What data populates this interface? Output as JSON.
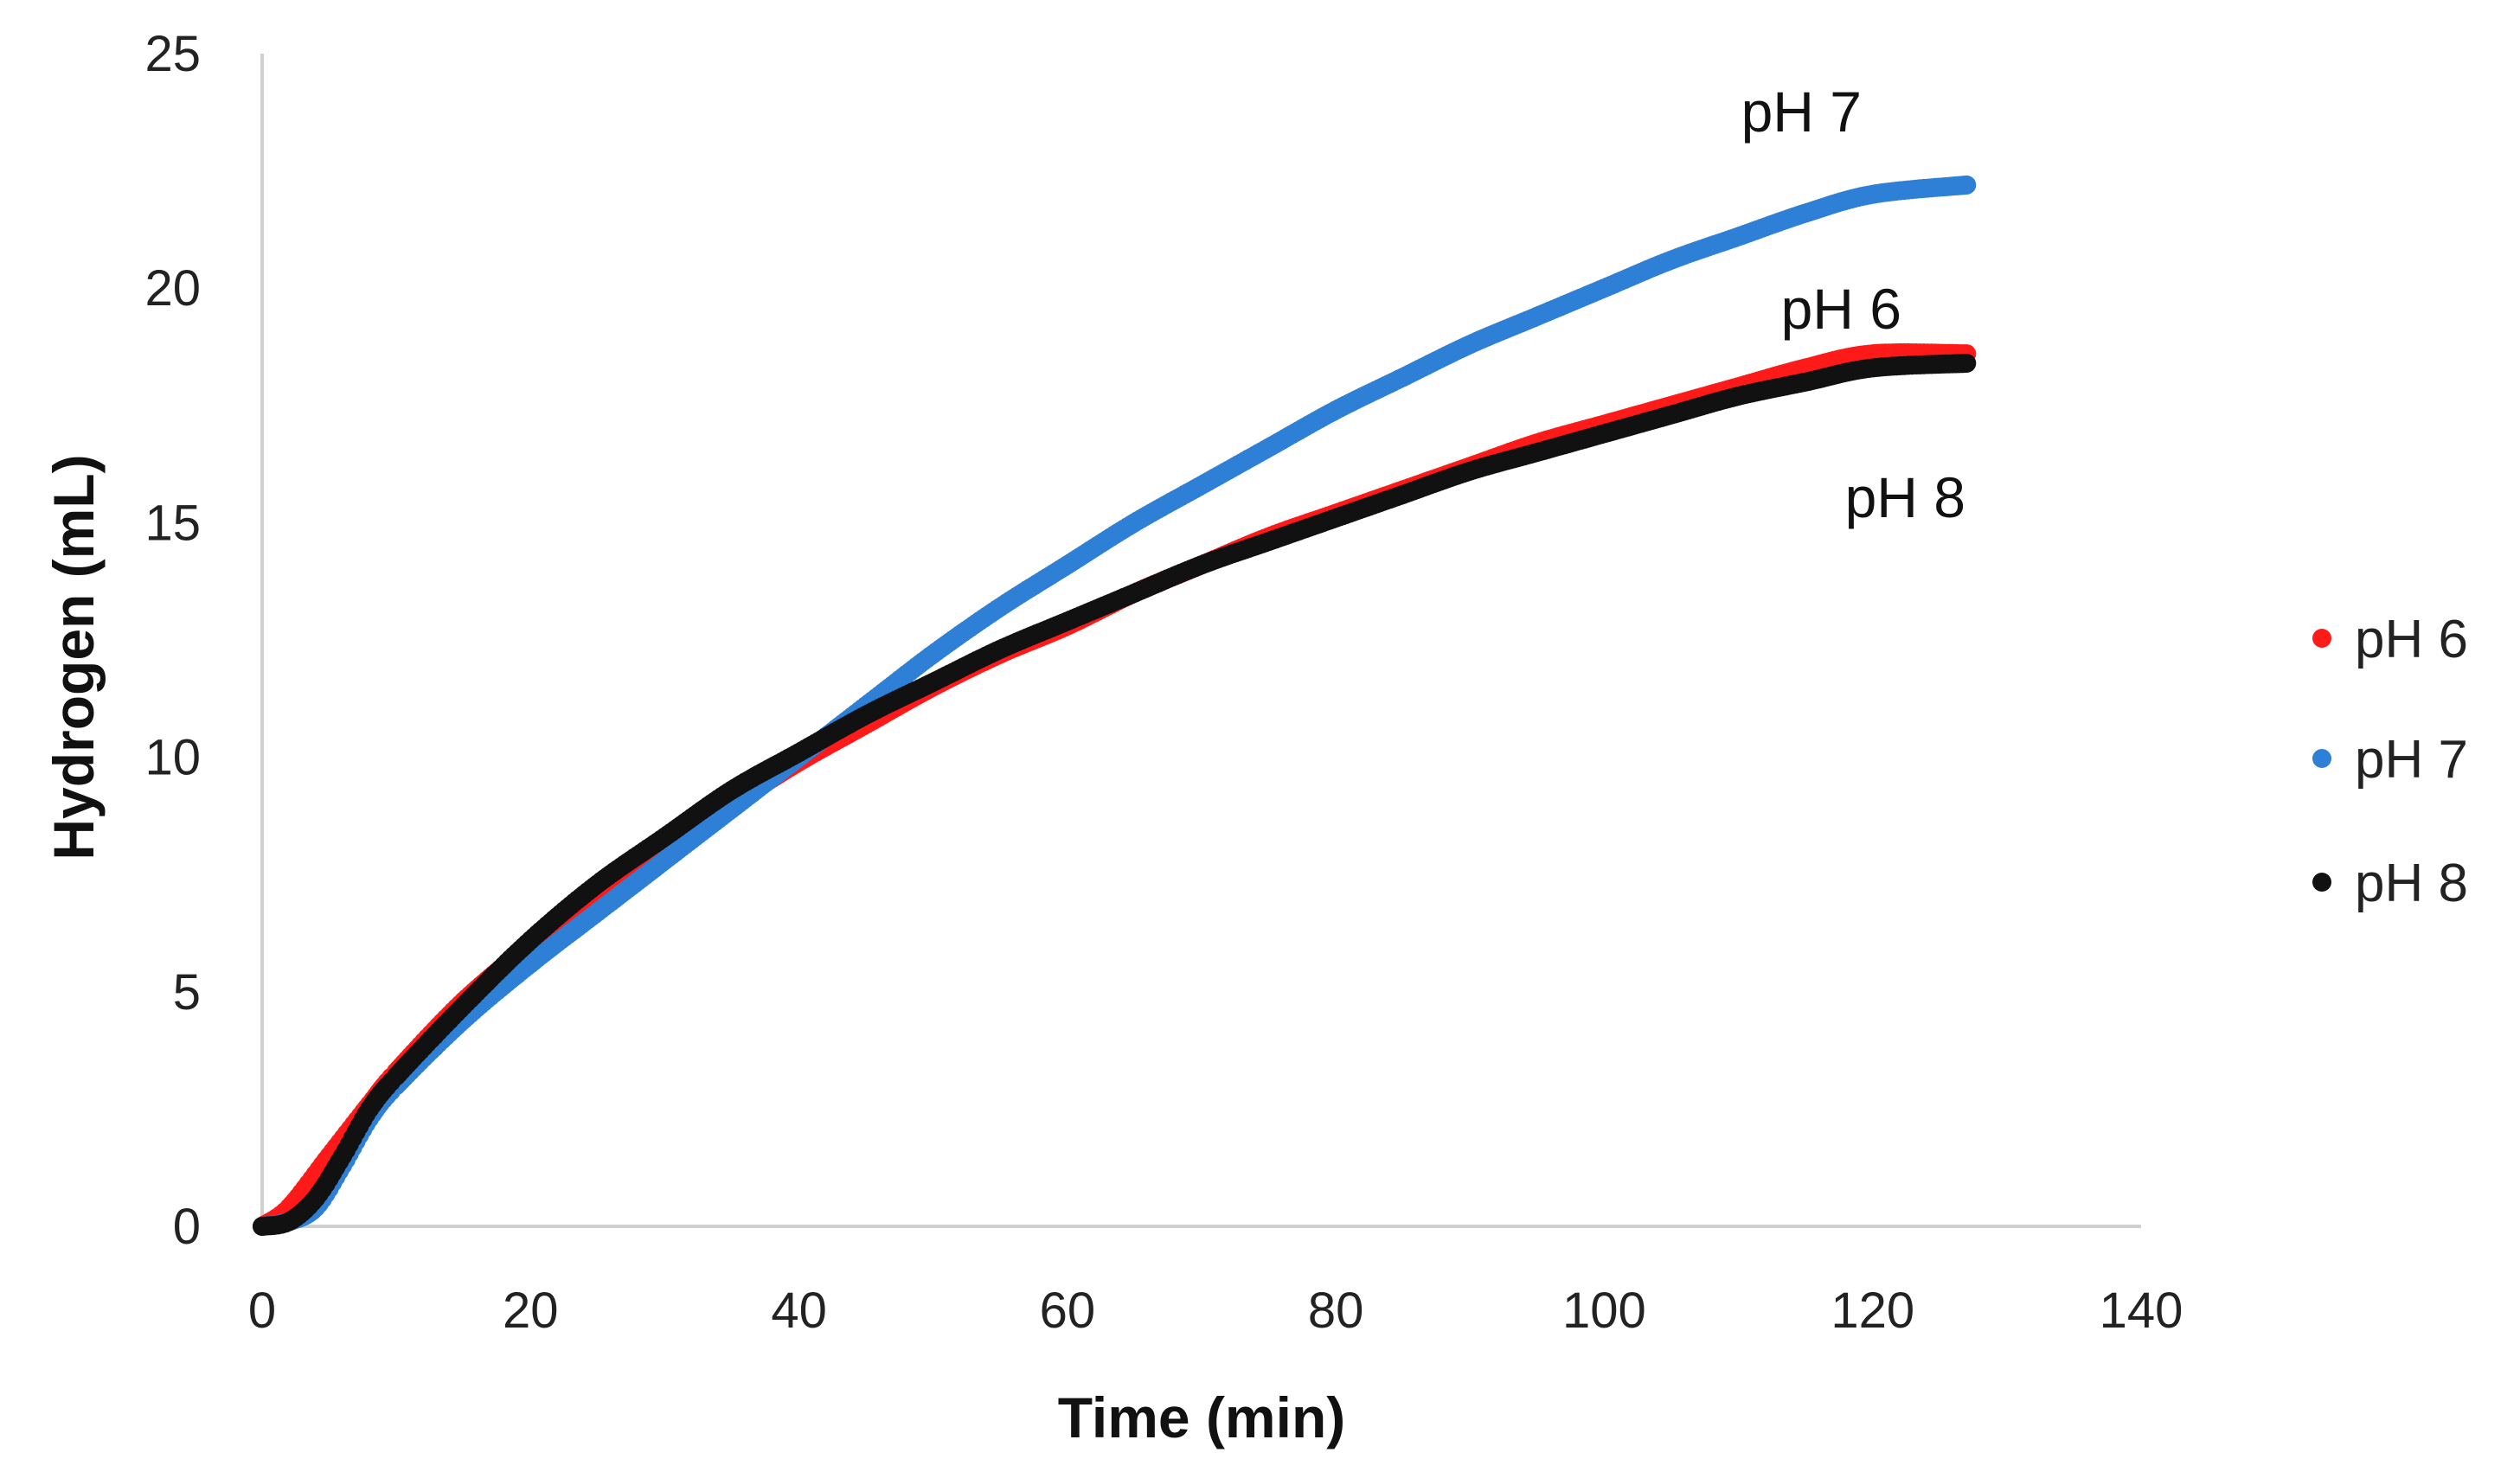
{
  "chart_data": {
    "type": "scatter",
    "title": "",
    "xlabel": "Time (min)",
    "ylabel": "Hydrogen (mL)",
    "xlim": [
      0,
      140
    ],
    "ylim": [
      0,
      25
    ],
    "xticks": [
      0,
      20,
      40,
      60,
      80,
      100,
      120,
      140
    ],
    "yticks": [
      0,
      5,
      10,
      15,
      20,
      25
    ],
    "grid": false,
    "legend_position": "right",
    "series": [
      {
        "name": "pH 6",
        "color": "#ff1a1a",
        "annotation": "pH 6",
        "x": [
          0,
          2,
          5,
          8,
          10,
          15,
          20,
          25,
          30,
          35,
          40,
          45,
          50,
          55,
          60,
          65,
          70,
          75,
          80,
          85,
          90,
          95,
          100,
          105,
          110,
          115,
          120,
          127
        ],
        "y": [
          0,
          0.4,
          1.5,
          2.6,
          3.3,
          4.8,
          6.0,
          7.1,
          8.1,
          9.0,
          9.9,
          10.7,
          11.5,
          12.2,
          12.8,
          13.5,
          14.1,
          14.7,
          15.2,
          15.7,
          16.2,
          16.7,
          17.1,
          17.5,
          17.9,
          18.3,
          18.6,
          18.6
        ]
      },
      {
        "name": "pH 7",
        "color": "#2e7fd6",
        "annotation": "pH 7",
        "x": [
          0,
          2,
          4,
          6,
          8,
          10,
          15,
          20,
          25,
          30,
          35,
          40,
          45,
          50,
          55,
          60,
          65,
          70,
          75,
          80,
          85,
          90,
          95,
          100,
          105,
          110,
          115,
          120,
          127
        ],
        "y": [
          0,
          0.1,
          0.4,
          1.3,
          2.3,
          3.0,
          4.4,
          5.6,
          6.7,
          7.8,
          8.9,
          10.0,
          11.1,
          12.2,
          13.2,
          14.1,
          15.0,
          15.8,
          16.6,
          17.4,
          18.1,
          18.8,
          19.4,
          20.0,
          20.6,
          21.1,
          21.6,
          22.0,
          22.2
        ]
      },
      {
        "name": "pH 8",
        "color": "#111111",
        "annotation": "pH 8",
        "x": [
          0,
          2,
          4,
          6,
          8,
          10,
          15,
          20,
          25,
          30,
          35,
          40,
          45,
          50,
          55,
          60,
          65,
          70,
          75,
          80,
          85,
          90,
          95,
          100,
          105,
          110,
          115,
          120,
          127
        ],
        "y": [
          0,
          0.1,
          0.6,
          1.5,
          2.5,
          3.2,
          4.7,
          6.1,
          7.3,
          8.3,
          9.3,
          10.1,
          10.9,
          11.6,
          12.3,
          12.9,
          13.5,
          14.1,
          14.6,
          15.1,
          15.6,
          16.1,
          16.5,
          16.9,
          17.3,
          17.7,
          18.0,
          18.3,
          18.4
        ]
      }
    ]
  }
}
